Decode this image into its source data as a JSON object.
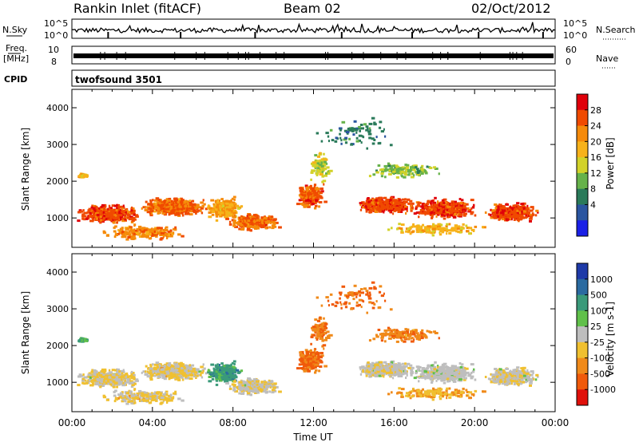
{
  "header": {
    "title": "Rankin Inlet (fitACF)",
    "beam": "Beam 02",
    "date": "02/Oct/2012"
  },
  "strips": {
    "nsky_label": "N.Sky",
    "nsky_ticks": [
      "10^5",
      "10^0"
    ],
    "nsearch_label": "N.Search",
    "nsearch_ticks": [
      "10^5",
      "10^0"
    ],
    "freq_label": "Freq.",
    "freq_unit": "[MHz]",
    "freq_ticks": [
      "10",
      "8"
    ],
    "nave_label": "Nave",
    "nave_ticks": [
      "60",
      "0"
    ],
    "cpid_label": "CPID",
    "cpid_value": "twofsound 3501"
  },
  "chart_data": [
    {
      "type": "heatmap",
      "name": "power",
      "ylabel": "Slant Range [km]",
      "yticks": [
        1000,
        2000,
        3000,
        4000
      ],
      "ylim": [
        200,
        4500
      ],
      "xlim": [
        0,
        24
      ],
      "colorbar": {
        "label": "Power [dB]",
        "tick_labels": [
          "28",
          "24",
          "20",
          "16",
          "12",
          "8",
          "4"
        ],
        "colors": [
          "#e0000a",
          "#f04a00",
          "#f58a0a",
          "#f7b21a",
          "#d2d229",
          "#66b24a",
          "#2a7a5a",
          "#2a55a0",
          "#1a20e6"
        ]
      }
    },
    {
      "type": "heatmap",
      "name": "velocity",
      "ylabel": "Slant Range [km]",
      "yticks": [
        1000,
        2000,
        3000,
        4000
      ],
      "ylim": [
        200,
        4500
      ],
      "xlim": [
        0,
        24
      ],
      "xlabel": "Time UT",
      "xtick_labels": [
        "00:00",
        "04:00",
        "08:00",
        "12:00",
        "16:00",
        "20:00",
        "00:00"
      ],
      "colorbar": {
        "label": "Velocity [m s-1]",
        "tick_labels": [
          "1000",
          "500",
          "100",
          "25",
          "-25",
          "-100",
          "-500",
          "-1000"
        ],
        "colors": [
          "#1e3aa8",
          "#2a6aa0",
          "#3a9a7a",
          "#60c04a",
          "#bebebe",
          "#f0c030",
          "#f08a1a",
          "#f05a0a",
          "#e0100a"
        ]
      }
    }
  ]
}
